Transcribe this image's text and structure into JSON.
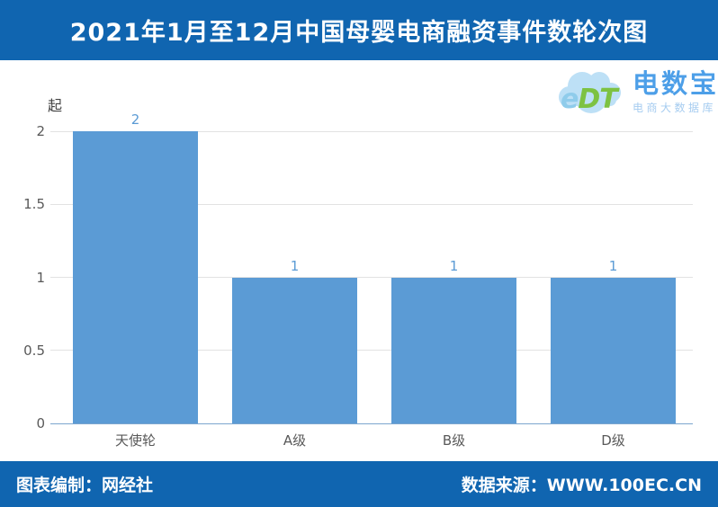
{
  "header": {
    "title": "2021年1月至12月中国母婴电商融资事件数轮次图",
    "background": "#1065B0",
    "text_color": "#FFFFFF"
  },
  "logo": {
    "cloud_icon": "cloud-icon",
    "mark_e": "e",
    "mark_dt": "DT",
    "name": "电数宝",
    "subtitle": "电商大数据库",
    "cloud_color": "#A9D7F2",
    "name_color": "#4D9FE8",
    "subtitle_color": "#A6CCF0"
  },
  "chart_data": {
    "type": "bar",
    "title": "2021年1月至12月中国母婴电商融资事件数轮次图",
    "unit_label": "起",
    "categories": [
      "天使轮",
      "A级",
      "B级",
      "D级"
    ],
    "values": [
      2,
      1,
      1,
      1
    ],
    "xlabel": "",
    "ylabel": "起",
    "ylim": [
      0,
      2
    ],
    "yticks": [
      0,
      0.5,
      1,
      1.5,
      2
    ],
    "grid": true,
    "legend": "none",
    "bar_color": "#5B9BD5",
    "value_label_color": "#5B9BD5",
    "tick_label_color": "#595959",
    "gridline_color": "#E2E2E2",
    "axis_line_color": "#7CA6CE"
  },
  "footer": {
    "left": "图表编制：网经社",
    "right": "数据来源：WWW.100EC.CN",
    "background": "#1065B0",
    "text_color": "#FFFFFF"
  }
}
